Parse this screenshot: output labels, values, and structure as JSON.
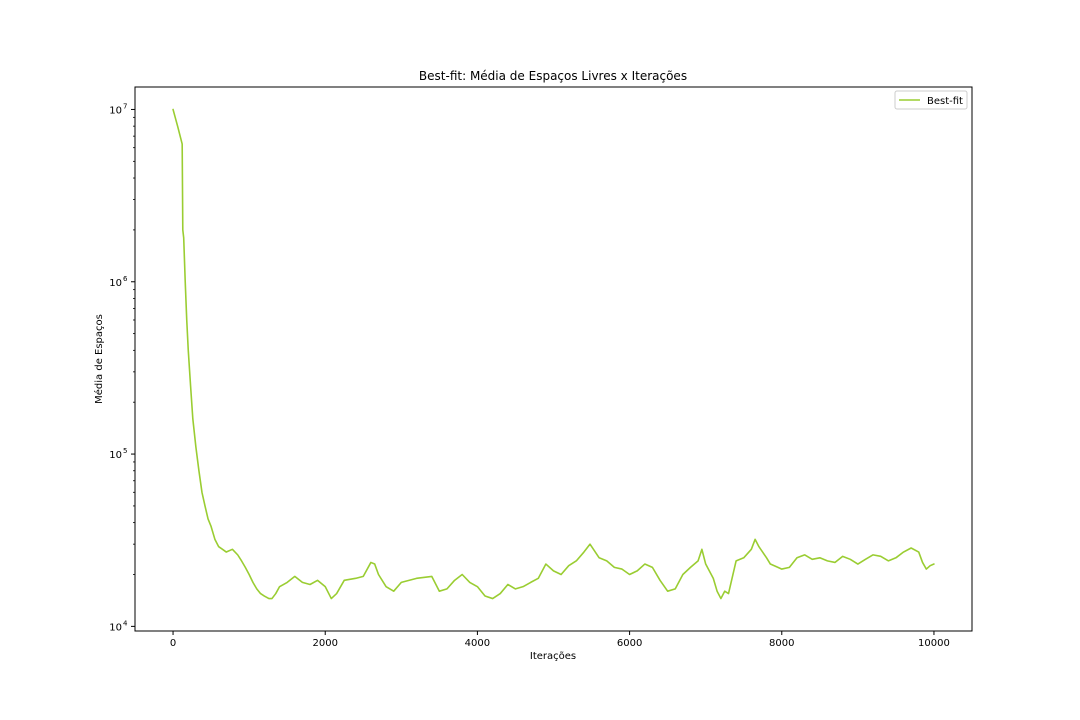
{
  "chart_data": {
    "type": "line",
    "title": "Best-fit: Média de Espaços Livres x Iterações",
    "xlabel": "Iterações",
    "ylabel": "Média de Espaços",
    "xlim": [
      -500,
      10500
    ],
    "ylim": [
      9400,
      13500000
    ],
    "y_scale": "log",
    "x_ticks": [
      0,
      2000,
      4000,
      6000,
      8000,
      10000
    ],
    "x_tick_labels": [
      "0",
      "2000",
      "4000",
      "6000",
      "8000",
      "10000"
    ],
    "y_ticks": [
      10000,
      100000,
      1000000,
      10000000
    ],
    "y_tick_labels": [
      {
        "base": "10",
        "exp": "4"
      },
      {
        "base": "10",
        "exp": "5"
      },
      {
        "base": "10",
        "exp": "6"
      },
      {
        "base": "10",
        "exp": "7"
      }
    ],
    "grid": false,
    "legend_position": "top-right",
    "series": [
      {
        "name": "Best-fit",
        "color": "#9acd32",
        "points": [
          [
            0,
            10000000
          ],
          [
            60,
            8000000
          ],
          [
            120,
            6300000
          ],
          [
            128,
            2000000
          ],
          [
            140,
            1800000
          ],
          [
            160,
            1000000
          ],
          [
            180,
            600000
          ],
          [
            200,
            400000
          ],
          [
            230,
            250000
          ],
          [
            260,
            160000
          ],
          [
            300,
            110000
          ],
          [
            340,
            80000
          ],
          [
            380,
            60000
          ],
          [
            420,
            50000
          ],
          [
            460,
            42000
          ],
          [
            500,
            38000
          ],
          [
            550,
            32000
          ],
          [
            600,
            29000
          ],
          [
            650,
            28000
          ],
          [
            700,
            27000
          ],
          [
            780,
            28000
          ],
          [
            850,
            26000
          ],
          [
            900,
            24000
          ],
          [
            950,
            22000
          ],
          [
            1000,
            20000
          ],
          [
            1050,
            18000
          ],
          [
            1100,
            16500
          ],
          [
            1150,
            15500
          ],
          [
            1200,
            15000
          ],
          [
            1260,
            14500
          ],
          [
            1300,
            14500
          ],
          [
            1350,
            15500
          ],
          [
            1400,
            17000
          ],
          [
            1500,
            18000
          ],
          [
            1600,
            19500
          ],
          [
            1700,
            18000
          ],
          [
            1800,
            17500
          ],
          [
            1900,
            18500
          ],
          [
            2000,
            17000
          ],
          [
            2080,
            14500
          ],
          [
            2150,
            15500
          ],
          [
            2250,
            18500
          ],
          [
            2400,
            19000
          ],
          [
            2500,
            19500
          ],
          [
            2600,
            23500
          ],
          [
            2650,
            23000
          ],
          [
            2700,
            20000
          ],
          [
            2800,
            17000
          ],
          [
            2900,
            16000
          ],
          [
            3000,
            18000
          ],
          [
            3200,
            19000
          ],
          [
            3400,
            19500
          ],
          [
            3500,
            16000
          ],
          [
            3600,
            16500
          ],
          [
            3700,
            18500
          ],
          [
            3800,
            20000
          ],
          [
            3900,
            18000
          ],
          [
            4000,
            17000
          ],
          [
            4100,
            15000
          ],
          [
            4200,
            14500
          ],
          [
            4300,
            15500
          ],
          [
            4400,
            17500
          ],
          [
            4500,
            16500
          ],
          [
            4600,
            17000
          ],
          [
            4700,
            18000
          ],
          [
            4800,
            19000
          ],
          [
            4900,
            23000
          ],
          [
            5000,
            21000
          ],
          [
            5100,
            20000
          ],
          [
            5200,
            22500
          ],
          [
            5300,
            24000
          ],
          [
            5400,
            27000
          ],
          [
            5480,
            30000
          ],
          [
            5600,
            25000
          ],
          [
            5700,
            24000
          ],
          [
            5800,
            22000
          ],
          [
            5900,
            21500
          ],
          [
            6000,
            20000
          ],
          [
            6100,
            21000
          ],
          [
            6200,
            23000
          ],
          [
            6300,
            22000
          ],
          [
            6400,
            18500
          ],
          [
            6500,
            16000
          ],
          [
            6600,
            16500
          ],
          [
            6700,
            20000
          ],
          [
            6800,
            22000
          ],
          [
            6900,
            24000
          ],
          [
            6950,
            28000
          ],
          [
            7000,
            23000
          ],
          [
            7100,
            19000
          ],
          [
            7150,
            16000
          ],
          [
            7200,
            14500
          ],
          [
            7250,
            16000
          ],
          [
            7300,
            15500
          ],
          [
            7400,
            24000
          ],
          [
            7500,
            25000
          ],
          [
            7600,
            28000
          ],
          [
            7650,
            32000
          ],
          [
            7700,
            29000
          ],
          [
            7800,
            25000
          ],
          [
            7850,
            23000
          ],
          [
            7950,
            22000
          ],
          [
            8000,
            21500
          ],
          [
            8100,
            22000
          ],
          [
            8200,
            25000
          ],
          [
            8300,
            26000
          ],
          [
            8400,
            24500
          ],
          [
            8500,
            25000
          ],
          [
            8600,
            24000
          ],
          [
            8700,
            23500
          ],
          [
            8800,
            25500
          ],
          [
            8900,
            24500
          ],
          [
            9000,
            23000
          ],
          [
            9100,
            24500
          ],
          [
            9200,
            26000
          ],
          [
            9300,
            25500
          ],
          [
            9400,
            24000
          ],
          [
            9500,
            25000
          ],
          [
            9600,
            27000
          ],
          [
            9700,
            28500
          ],
          [
            9800,
            27000
          ],
          [
            9850,
            23500
          ],
          [
            9900,
            21500
          ],
          [
            9950,
            22500
          ],
          [
            10000,
            23000
          ]
        ]
      }
    ]
  }
}
